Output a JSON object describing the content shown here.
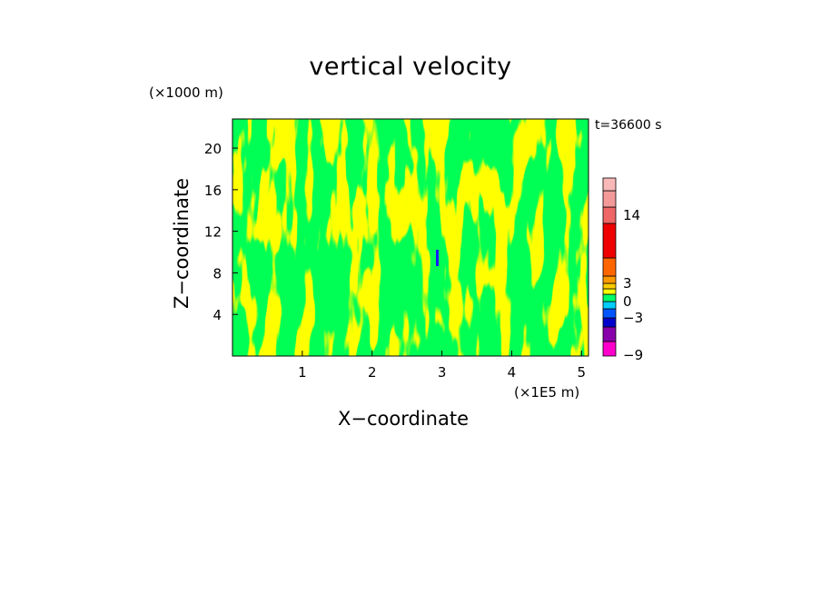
{
  "chart_data": {
    "type": "heatmap",
    "title": "vertical velocity",
    "xlabel": "X−coordinate",
    "ylabel": "Z−coordinate",
    "x_multiplier": "(×1E5 m)",
    "y_multiplier": "(×1000 m)",
    "time_label": "t=36600 s",
    "xlim": [
      0,
      5.1
    ],
    "ylim": [
      0,
      22.8
    ],
    "x_ticks": [
      {
        "value": 1,
        "label": "1"
      },
      {
        "value": 2,
        "label": "2"
      },
      {
        "value": 3,
        "label": "3"
      },
      {
        "value": 4,
        "label": "4"
      },
      {
        "value": 5,
        "label": "5"
      }
    ],
    "y_ticks": [
      {
        "value": 4,
        "label": "4"
      },
      {
        "value": 8,
        "label": "8"
      },
      {
        "value": 12,
        "label": "12"
      },
      {
        "value": 16,
        "label": "16"
      },
      {
        "value": 20,
        "label": "20"
      }
    ],
    "field_colors": {
      "upward_weak": "#ffff00",
      "downward_weak": "#00ff55",
      "strong_down": "#1a1aff"
    },
    "colorbar": {
      "levels": [
        {
          "color": "#ff00cc"
        },
        {
          "color": "#8800aa"
        },
        {
          "color": "#0000cc"
        },
        {
          "color": "#0055ff"
        },
        {
          "color": "#00ccff"
        },
        {
          "color": "#00ff66"
        },
        {
          "color": "#ffff00"
        },
        {
          "color": "#ffcc00"
        },
        {
          "color": "#ff9900"
        },
        {
          "color": "#ff6600"
        },
        {
          "color": "#ee0000"
        },
        {
          "color": "#ee6666"
        },
        {
          "color": "#f49999"
        },
        {
          "color": "#f8b8b8"
        }
      ],
      "labels": [
        {
          "value": -9,
          "text": "−9"
        },
        {
          "value": -3,
          "text": "−3"
        },
        {
          "value": 0,
          "text": "0"
        },
        {
          "value": 3,
          "text": "3"
        },
        {
          "value": 14,
          "text": "14"
        }
      ]
    }
  }
}
